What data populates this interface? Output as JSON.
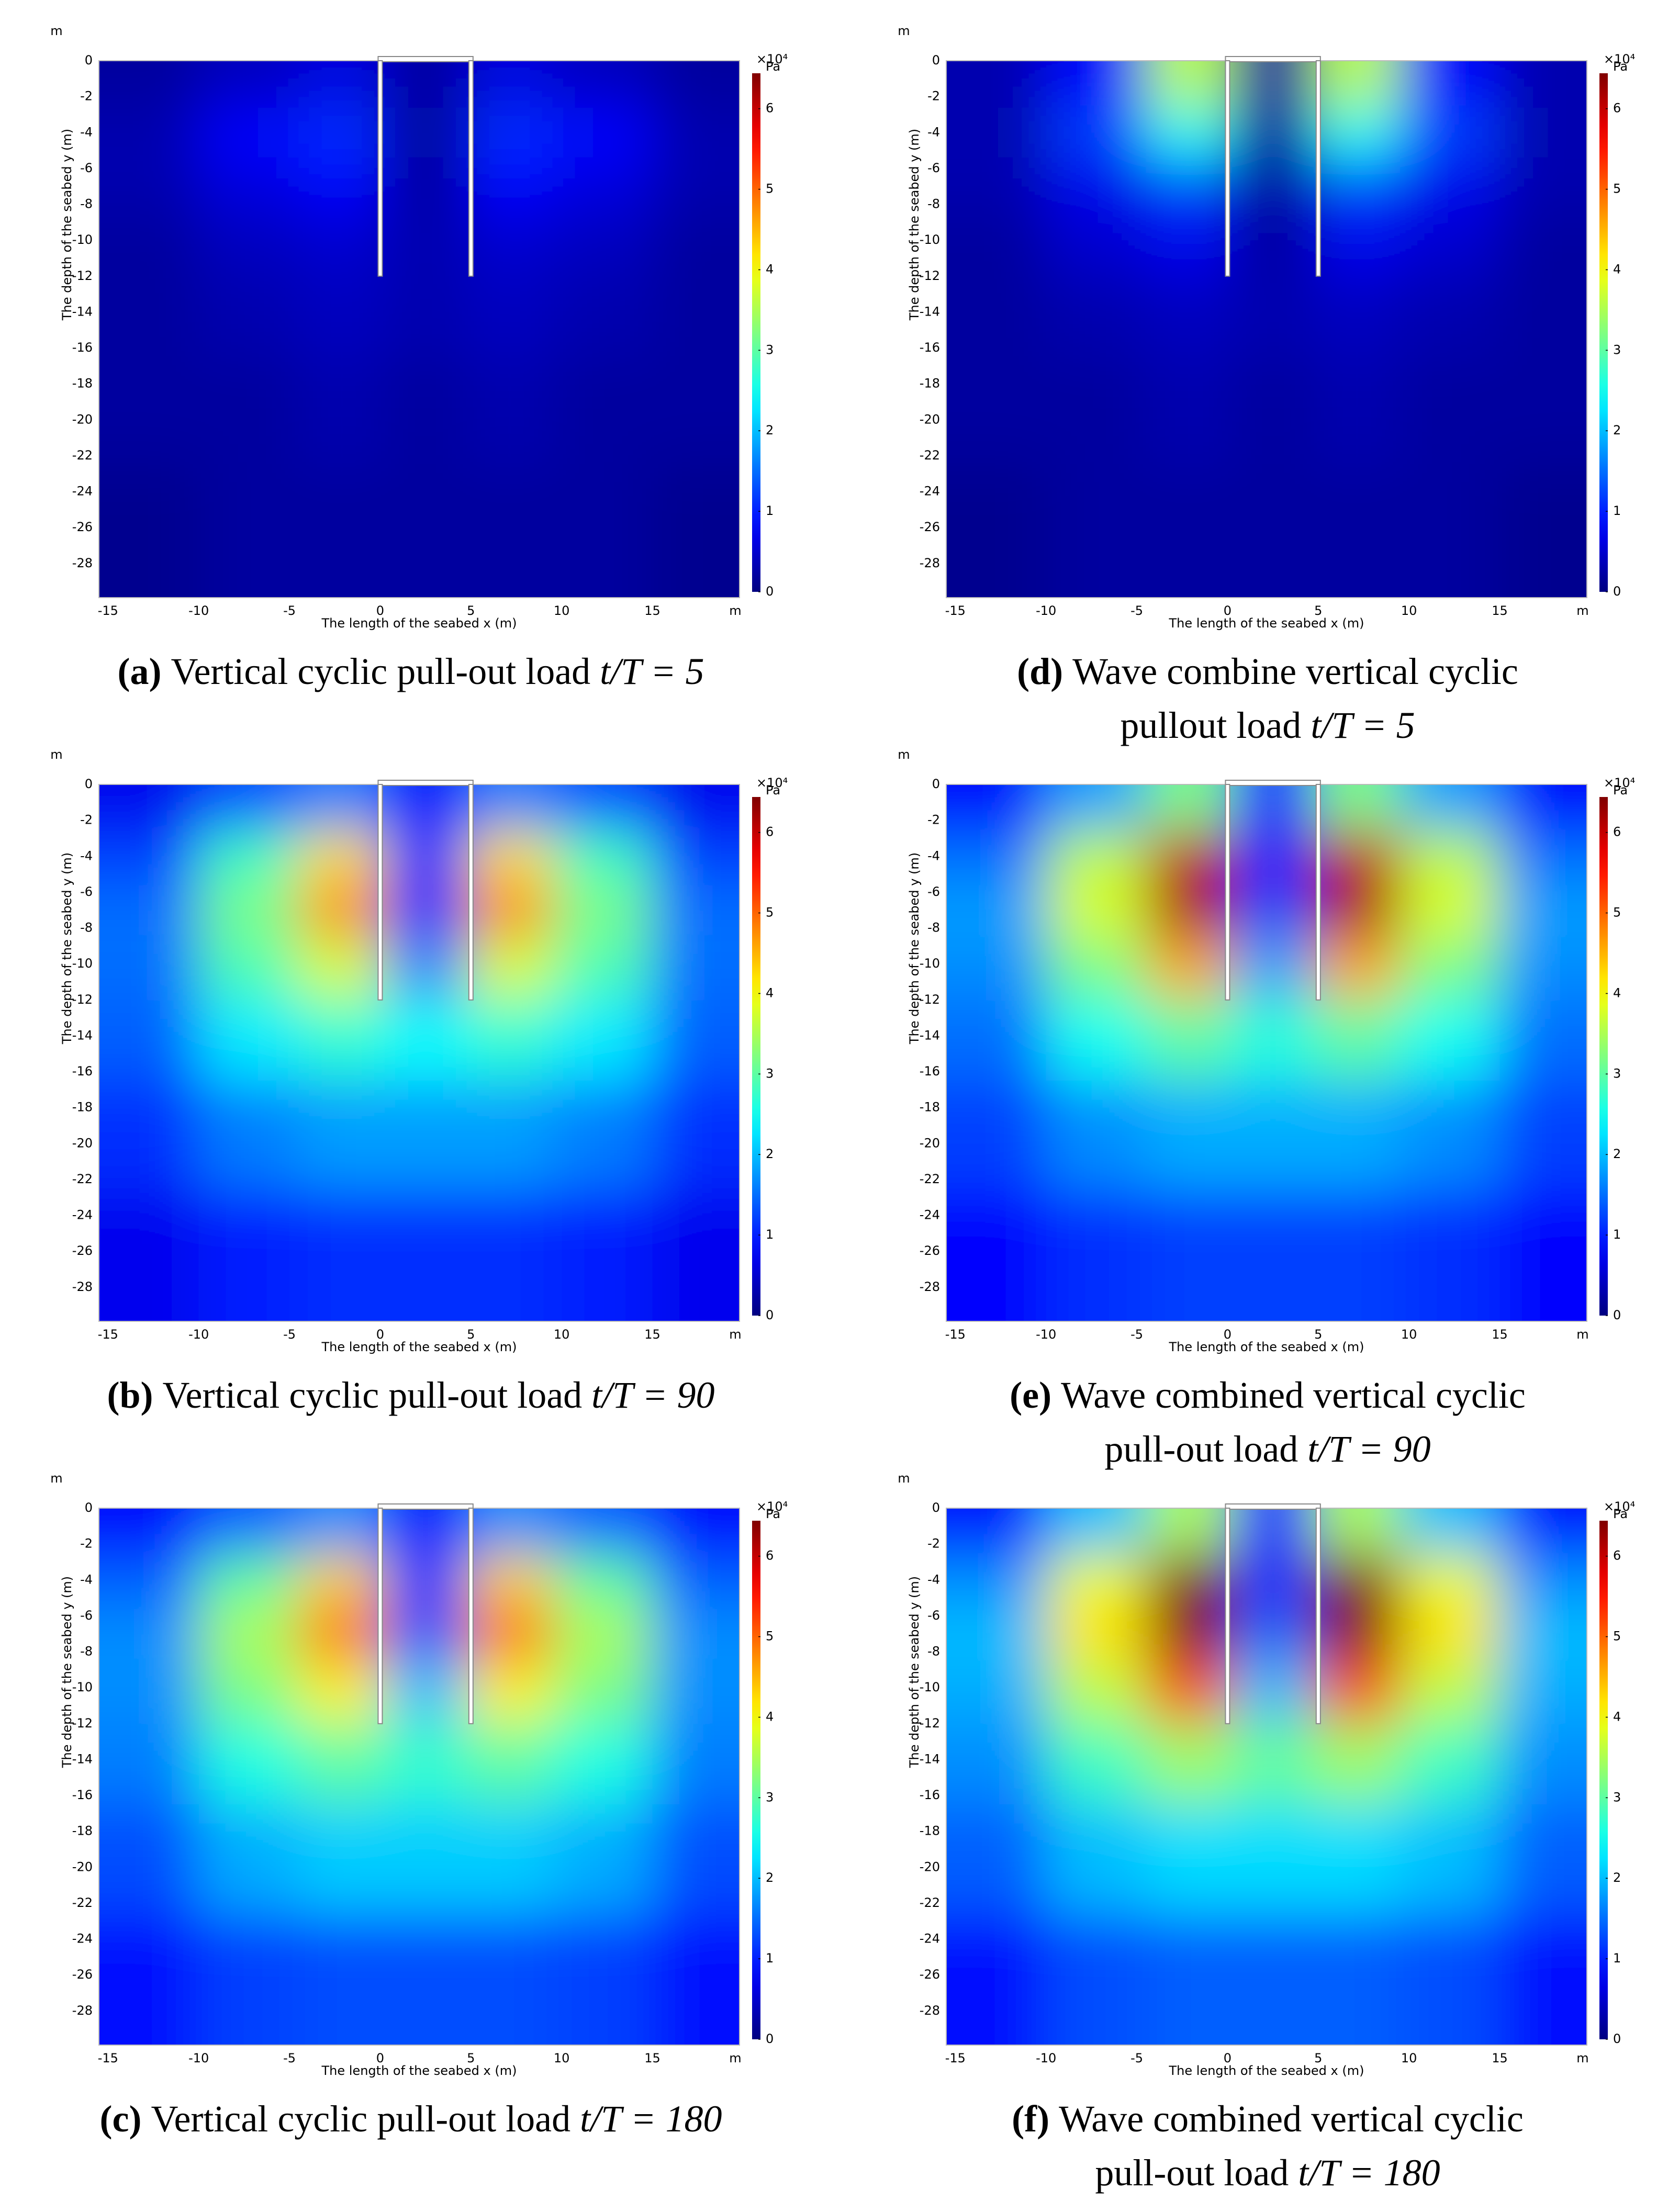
{
  "chart_data": [
    {
      "type": "heatmap",
      "caption_label": "(a)",
      "caption_lines": [
        "Vertical cyclic pull-out load"
      ],
      "caption_math": "t/T = 5",
      "x_label": "The length of the seabed x (m)",
      "y_label": "The depth of the seabed y (m)",
      "x_unit": "m",
      "y_unit": "m",
      "colorbar_scale": "×10⁴",
      "colorbar_unit": "Pa",
      "colormap": "jet",
      "xlim": [
        -15.5,
        19.8
      ],
      "ylim": [
        -29.9,
        0
      ],
      "clim": [
        0,
        6.44
      ],
      "xticks": [
        -15,
        -10,
        -5,
        0,
        5,
        10,
        15
      ],
      "yticks": [
        0,
        -2,
        -4,
        -6,
        -8,
        -10,
        -12,
        -14,
        -16,
        -18,
        -20,
        -22,
        -24,
        -26,
        -28
      ],
      "colorbar_ticks": [
        0,
        1,
        2,
        3,
        4,
        5,
        6
      ],
      "x": [
        -13,
        -7,
        -2,
        2.5,
        7,
        12,
        18
      ],
      "y": [
        -1,
        -4,
        -7,
        -10,
        -14,
        -19,
        -26
      ],
      "z": [
        [
          0.2,
          0.4,
          0.6,
          0.2,
          0.6,
          0.4,
          0.2
        ],
        [
          0.3,
          0.8,
          1.1,
          0.2,
          1.1,
          0.8,
          0.3
        ],
        [
          0.3,
          0.6,
          0.8,
          0.2,
          0.8,
          0.6,
          0.3
        ],
        [
          0.2,
          0.4,
          0.5,
          0.3,
          0.5,
          0.4,
          0.2
        ],
        [
          0.2,
          0.3,
          0.4,
          0.3,
          0.4,
          0.3,
          0.2
        ],
        [
          0.2,
          0.2,
          0.3,
          0.2,
          0.3,
          0.2,
          0.2
        ],
        [
          0.1,
          0.2,
          0.2,
          0.2,
          0.2,
          0.2,
          0.1
        ]
      ]
    },
    {
      "type": "heatmap",
      "caption_label": "(b)",
      "caption_lines": [
        "Vertical cyclic pull-out load"
      ],
      "caption_math": "t/T = 90",
      "x_label": "The length of the seabed x (m)",
      "y_label": "The depth of the seabed y (m)",
      "x_unit": "m",
      "y_unit": "m",
      "colorbar_scale": "×10⁴",
      "colorbar_unit": "Pa",
      "colormap": "jet",
      "xlim": [
        -15.5,
        19.8
      ],
      "ylim": [
        -29.9,
        0
      ],
      "clim": [
        0,
        6.44
      ],
      "xticks": [
        -15,
        -10,
        -5,
        0,
        5,
        10,
        15
      ],
      "yticks": [
        0,
        -2,
        -4,
        -6,
        -8,
        -10,
        -12,
        -14,
        -16,
        -18,
        -20,
        -22,
        -24,
        -26,
        -28
      ],
      "colorbar_ticks": [
        0,
        1,
        2,
        3,
        4,
        5,
        6
      ],
      "x": [
        -13,
        -7,
        -2,
        2.5,
        7,
        12,
        18
      ],
      "y": [
        -1,
        -4,
        -7,
        -10,
        -14,
        -19,
        -26
      ],
      "z": [
        [
          0.7,
          1.3,
          1.6,
          0.8,
          1.6,
          1.3,
          0.7
        ],
        [
          1.2,
          2.8,
          4.2,
          0.9,
          4.2,
          2.8,
          1.2
        ],
        [
          1.5,
          3.2,
          4.8,
          1.0,
          4.8,
          3.2,
          1.5
        ],
        [
          1.5,
          2.9,
          3.8,
          1.6,
          3.8,
          2.9,
          1.5
        ],
        [
          1.4,
          2.3,
          2.7,
          2.4,
          2.7,
          2.3,
          1.4
        ],
        [
          1.1,
          1.6,
          1.8,
          1.8,
          1.8,
          1.6,
          1.1
        ],
        [
          0.7,
          1.0,
          1.1,
          1.1,
          1.1,
          1.0,
          0.7
        ]
      ]
    },
    {
      "type": "heatmap",
      "caption_label": "(c)",
      "caption_lines": [
        "Vertical cyclic pull-out load"
      ],
      "caption_math": "t/T = 180",
      "x_label": "The length of the seabed x (m)",
      "y_label": "The depth of the seabed y (m)",
      "x_unit": "m",
      "y_unit": "m",
      "colorbar_scale": "×10⁴",
      "colorbar_unit": "Pa",
      "colormap": "jet",
      "xlim": [
        -15.5,
        19.8
      ],
      "ylim": [
        -29.9,
        0
      ],
      "clim": [
        0,
        6.44
      ],
      "xticks": [
        -15,
        -10,
        -5,
        0,
        5,
        10,
        15
      ],
      "yticks": [
        0,
        -2,
        -4,
        -6,
        -8,
        -10,
        -12,
        -14,
        -16,
        -18,
        -20,
        -22,
        -24,
        -26,
        -28
      ],
      "colorbar_ticks": [
        0,
        1,
        2,
        3,
        4,
        5,
        6
      ],
      "x": [
        -13,
        -7,
        -2,
        2.5,
        7,
        12,
        18
      ],
      "y": [
        -1,
        -4,
        -7,
        -10,
        -14,
        -19,
        -26
      ],
      "z": [
        [
          0.8,
          1.4,
          1.7,
          0.9,
          1.7,
          1.4,
          0.8
        ],
        [
          1.4,
          3.0,
          4.3,
          1.0,
          4.3,
          3.0,
          1.4
        ],
        [
          1.7,
          3.5,
          5.0,
          1.3,
          5.0,
          3.5,
          1.7
        ],
        [
          1.7,
          3.2,
          4.1,
          2.0,
          4.1,
          3.2,
          1.7
        ],
        [
          1.6,
          2.6,
          3.0,
          2.7,
          3.0,
          2.6,
          1.6
        ],
        [
          1.3,
          1.9,
          2.1,
          2.1,
          2.1,
          1.9,
          1.3
        ],
        [
          0.9,
          1.2,
          1.3,
          1.3,
          1.3,
          1.2,
          0.9
        ]
      ]
    },
    {
      "type": "heatmap",
      "caption_label": "(d)",
      "caption_lines": [
        "Wave combine vertical cyclic",
        "pullout load"
      ],
      "caption_math": "t/T = 5",
      "x_label": "The length of the seabed x (m)",
      "y_label": "The depth of the seabed y (m)",
      "x_unit": "m",
      "y_unit": "m",
      "colorbar_scale": "×10⁴",
      "colorbar_unit": "Pa",
      "colormap": "jet",
      "xlim": [
        -15.5,
        19.8
      ],
      "ylim": [
        -29.9,
        0
      ],
      "clim": [
        0,
        6.44
      ],
      "xticks": [
        -15,
        -10,
        -5,
        0,
        5,
        10,
        15
      ],
      "yticks": [
        0,
        -2,
        -4,
        -6,
        -8,
        -10,
        -12,
        -14,
        -16,
        -18,
        -20,
        -22,
        -24,
        -26,
        -28
      ],
      "colorbar_ticks": [
        0,
        1,
        2,
        3,
        4,
        5,
        6
      ],
      "x": [
        -13,
        -7,
        -2,
        2.5,
        7,
        12,
        18
      ],
      "y": [
        -1,
        -4,
        -7,
        -10,
        -14,
        -19,
        -26
      ],
      "z": [
        [
          0.3,
          0.8,
          3.6,
          0.2,
          3.6,
          0.8,
          0.3
        ],
        [
          0.3,
          1.2,
          2.5,
          0.2,
          2.5,
          1.2,
          0.3
        ],
        [
          0.3,
          0.7,
          1.2,
          0.2,
          1.2,
          0.7,
          0.3
        ],
        [
          0.2,
          0.5,
          0.7,
          0.2,
          0.7,
          0.5,
          0.2
        ],
        [
          0.2,
          0.3,
          0.4,
          0.3,
          0.4,
          0.3,
          0.2
        ],
        [
          0.2,
          0.2,
          0.3,
          0.2,
          0.3,
          0.2,
          0.2
        ],
        [
          0.1,
          0.2,
          0.2,
          0.2,
          0.2,
          0.2,
          0.1
        ]
      ]
    },
    {
      "type": "heatmap",
      "caption_label": "(e)",
      "caption_lines": [
        "Wave combined vertical cyclic",
        "pull-out load"
      ],
      "caption_math": "t/T = 90",
      "x_label": "The length of the seabed x (m)",
      "y_label": "The depth of the seabed y (m)",
      "x_unit": "m",
      "y_unit": "m",
      "colorbar_scale": "×10⁴",
      "colorbar_unit": "Pa",
      "colormap": "jet",
      "xlim": [
        -15.5,
        19.8
      ],
      "ylim": [
        -29.9,
        0
      ],
      "clim": [
        0,
        6.44
      ],
      "xticks": [
        -15,
        -10,
        -5,
        0,
        5,
        10,
        15
      ],
      "yticks": [
        0,
        -2,
        -4,
        -6,
        -8,
        -10,
        -12,
        -14,
        -16,
        -18,
        -20,
        -22,
        -24,
        -26,
        -28
      ],
      "colorbar_ticks": [
        0,
        1,
        2,
        3,
        4,
        5,
        6
      ],
      "x": [
        -13,
        -7,
        -2,
        2.5,
        7,
        12,
        18
      ],
      "y": [
        -1,
        -4,
        -7,
        -10,
        -14,
        -19,
        -26
      ],
      "z": [
        [
          0.8,
          1.8,
          3.2,
          0.9,
          3.2,
          1.8,
          0.8
        ],
        [
          1.5,
          3.6,
          6.0,
          1.0,
          6.0,
          3.6,
          1.5
        ],
        [
          1.8,
          3.8,
          6.2,
          1.2,
          6.2,
          3.8,
          1.8
        ],
        [
          1.7,
          3.2,
          4.6,
          1.8,
          4.6,
          3.2,
          1.7
        ],
        [
          1.5,
          2.5,
          3.0,
          2.6,
          3.0,
          2.5,
          1.5
        ],
        [
          1.2,
          1.7,
          1.9,
          1.9,
          1.9,
          1.7,
          1.2
        ],
        [
          0.8,
          1.1,
          1.2,
          1.2,
          1.2,
          1.1,
          0.8
        ]
      ]
    },
    {
      "type": "heatmap",
      "caption_label": "(f)",
      "caption_lines": [
        "Wave combined vertical cyclic",
        "pull-out load"
      ],
      "caption_math": "t/T = 180",
      "x_label": "The length of the seabed x (m)",
      "y_label": "The depth of the seabed y (m)",
      "x_unit": "m",
      "y_unit": "m",
      "colorbar_scale": "×10⁴",
      "colorbar_unit": "Pa",
      "colormap": "jet",
      "xlim": [
        -15.5,
        19.8
      ],
      "ylim": [
        -29.9,
        0
      ],
      "clim": [
        0,
        6.44
      ],
      "xticks": [
        -15,
        -10,
        -5,
        0,
        5,
        10,
        15
      ],
      "yticks": [
        0,
        -2,
        -4,
        -6,
        -8,
        -10,
        -12,
        -14,
        -16,
        -18,
        -20,
        -22,
        -24,
        -26,
        -28
      ],
      "colorbar_ticks": [
        0,
        1,
        2,
        3,
        4,
        5,
        6
      ],
      "x": [
        -13,
        -7,
        -2,
        2.5,
        7,
        12,
        18
      ],
      "y": [
        -1,
        -4,
        -7,
        -10,
        -14,
        -19,
        -26
      ],
      "z": [
        [
          0.9,
          2.0,
          3.5,
          1.0,
          3.5,
          2.0,
          0.9
        ],
        [
          1.7,
          3.9,
          6.4,
          1.1,
          6.4,
          3.9,
          1.7
        ],
        [
          2.0,
          4.2,
          6.4,
          1.4,
          6.4,
          4.2,
          2.0
        ],
        [
          1.9,
          3.6,
          5.2,
          2.0,
          5.2,
          3.6,
          1.9
        ],
        [
          1.7,
          2.8,
          3.4,
          3.0,
          3.4,
          2.8,
          1.7
        ],
        [
          1.4,
          2.0,
          2.2,
          2.2,
          2.2,
          2.0,
          1.4
        ],
        [
          0.9,
          1.3,
          1.4,
          1.4,
          1.4,
          1.3,
          0.9
        ]
      ]
    }
  ]
}
